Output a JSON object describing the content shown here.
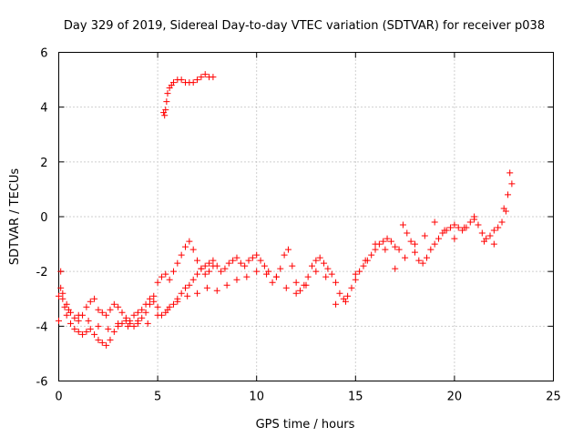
{
  "chart_data": {
    "type": "scatter",
    "title": "Day 329 of 2019, Sidereal Day-to-day VTEC variation (SDTVAR) for receiver p038",
    "xlabel": "GPS time / hours",
    "ylabel": "SDTVAR / TECUs",
    "xlim": [
      0,
      25
    ],
    "ylim": [
      -6,
      6
    ],
    "xticks": [
      "0",
      "5",
      "10",
      "15",
      "20",
      "25"
    ],
    "yticks": [
      "-6",
      "-4",
      "-2",
      "0",
      "2",
      "4",
      "6"
    ],
    "grid": true,
    "marker": "plus",
    "color": "#ff0000",
    "series": [
      {
        "name": "p038",
        "x": [
          0.0,
          0.1,
          0.1,
          0.2,
          0.3,
          0.4,
          0.6,
          0.8,
          1.0,
          1.2,
          1.4,
          1.6,
          1.8,
          2.0,
          2.2,
          2.4,
          2.6,
          2.8,
          3.0,
          3.2,
          3.4,
          3.6,
          3.8,
          4.0,
          4.2,
          4.4,
          4.6,
          4.8,
          5.0,
          5.2,
          5.4,
          5.6,
          5.8,
          6.0,
          6.2,
          6.4,
          6.6,
          6.8,
          7.0,
          7.2,
          7.4,
          7.6,
          7.8,
          5.3,
          5.35,
          5.4,
          5.45,
          5.5,
          5.6,
          5.7,
          5.8,
          6.0,
          6.2,
          6.4,
          6.6,
          6.8,
          7.0,
          7.2,
          7.4,
          7.6,
          7.8,
          0.0,
          0.2,
          0.4,
          0.6,
          0.8,
          1.0,
          1.2,
          1.4,
          1.6,
          1.8,
          2.0,
          2.2,
          2.4,
          2.6,
          2.8,
          3.0,
          3.2,
          3.4,
          3.6,
          3.8,
          4.0,
          4.2,
          4.4,
          4.6,
          4.8,
          5.0,
          5.2,
          5.4,
          5.6,
          5.8,
          6.0,
          6.2,
          6.4,
          6.6,
          6.8,
          7.0,
          7.2,
          7.4,
          7.6,
          7.8,
          8.0,
          8.2,
          8.4,
          8.6,
          8.8,
          9.0,
          9.2,
          9.4,
          9.6,
          9.8,
          10.0,
          10.2,
          10.4,
          10.6,
          10.8,
          11.0,
          11.2,
          11.4,
          11.6,
          11.8,
          12.0,
          12.2,
          12.4,
          12.6,
          12.8,
          13.0,
          13.2,
          13.4,
          13.6,
          13.8,
          14.0,
          14.2,
          14.4,
          14.6,
          14.8,
          15.0,
          15.2,
          15.4,
          15.6,
          15.8,
          16.0,
          16.2,
          16.4,
          16.6,
          16.8,
          17.0,
          17.2,
          17.4,
          17.6,
          17.8,
          18.0,
          18.2,
          18.4,
          18.6,
          18.8,
          19.0,
          19.2,
          19.4,
          19.6,
          19.8,
          20.0,
          20.2,
          20.4,
          20.6,
          20.8,
          21.0,
          21.2,
          21.4,
          21.6,
          21.8,
          22.0,
          22.2,
          22.4,
          22.6,
          22.7,
          22.8,
          22.9,
          0.5,
          1.0,
          1.5,
          2.0,
          2.5,
          3.0,
          3.5,
          4.0,
          4.5,
          5.0,
          5.5,
          6.0,
          6.5,
          7.0,
          7.5,
          8.0,
          8.5,
          9.0,
          9.5,
          10.0,
          10.5,
          11.0,
          11.5,
          12.0,
          12.5,
          13.0,
          13.5,
          14.0,
          14.5,
          15.0,
          15.5,
          16.0,
          16.5,
          17.0,
          17.5,
          18.0,
          18.5,
          19.0,
          19.5,
          20.0,
          20.5,
          21.0,
          21.5,
          22.0,
          22.5
        ],
        "y": [
          -3.8,
          -2.0,
          -2.6,
          -3.0,
          -3.3,
          -3.6,
          -3.9,
          -4.1,
          -4.2,
          -4.3,
          -4.2,
          -4.1,
          -4.3,
          -4.5,
          -4.6,
          -4.7,
          -4.5,
          -4.2,
          -4.0,
          -3.9,
          -3.8,
          -3.9,
          -4.0,
          -3.9,
          -3.7,
          -3.5,
          -3.2,
          -2.9,
          -2.4,
          -2.2,
          -2.1,
          -2.3,
          -2.0,
          -1.7,
          -1.4,
          -1.1,
          -0.9,
          -1.2,
          -1.6,
          -1.9,
          -2.1,
          -2.0,
          -1.8,
          3.8,
          3.7,
          3.9,
          4.2,
          4.5,
          4.7,
          4.8,
          4.9,
          5.0,
          5.0,
          4.9,
          4.9,
          4.9,
          5.0,
          5.1,
          5.2,
          5.1,
          5.1,
          -2.9,
          -2.8,
          -3.2,
          -3.5,
          -3.7,
          -3.8,
          -3.6,
          -3.3,
          -3.1,
          -3.0,
          -3.4,
          -3.5,
          -3.6,
          -3.4,
          -3.2,
          -3.3,
          -3.5,
          -3.7,
          -3.8,
          -3.6,
          -3.5,
          -3.4,
          -3.2,
          -3.0,
          -3.1,
          -3.3,
          -3.6,
          -3.5,
          -3.3,
          -3.2,
          -3.0,
          -2.8,
          -2.6,
          -2.5,
          -2.3,
          -2.1,
          -1.9,
          -1.8,
          -1.7,
          -1.6,
          -1.8,
          -2.0,
          -1.9,
          -1.7,
          -1.6,
          -1.5,
          -1.7,
          -1.8,
          -1.6,
          -1.5,
          -1.4,
          -1.6,
          -1.8,
          -2.0,
          -2.4,
          -2.2,
          -1.9,
          -1.4,
          -1.2,
          -1.8,
          -2.4,
          -2.7,
          -2.5,
          -2.2,
          -1.8,
          -1.6,
          -1.5,
          -1.7,
          -1.9,
          -2.1,
          -2.4,
          -2.8,
          -3.0,
          -2.9,
          -2.6,
          -2.3,
          -2.0,
          -1.8,
          -1.6,
          -1.4,
          -1.2,
          -1.0,
          -0.9,
          -0.8,
          -0.9,
          -1.1,
          -1.2,
          -0.3,
          -0.6,
          -0.9,
          -1.3,
          -1.6,
          -1.7,
          -1.5,
          -1.2,
          -1.0,
          -0.8,
          -0.6,
          -0.5,
          -0.4,
          -0.3,
          -0.4,
          -0.5,
          -0.4,
          -0.2,
          -0.1,
          -0.3,
          -0.6,
          -0.8,
          -0.7,
          -0.5,
          -0.4,
          -0.2,
          0.2,
          0.8,
          1.6,
          1.2,
          -3.4,
          -3.6,
          -3.8,
          -4.0,
          -4.1,
          -3.9,
          -4.0,
          -3.8,
          -3.9,
          -3.6,
          -3.4,
          -3.1,
          -2.9,
          -2.8,
          -2.6,
          -2.7,
          -2.5,
          -2.3,
          -2.2,
          -2.0,
          -2.1,
          -2.2,
          -2.6,
          -2.8,
          -2.5,
          -2.0,
          -2.2,
          -3.2,
          -3.1,
          -2.1,
          -1.6,
          -1.0,
          -1.2,
          -1.9,
          -1.5,
          -1.0,
          -0.7,
          -0.2,
          -0.5,
          -0.8,
          -0.4,
          0.0,
          -0.9,
          -1.0,
          0.3
        ]
      }
    ]
  }
}
